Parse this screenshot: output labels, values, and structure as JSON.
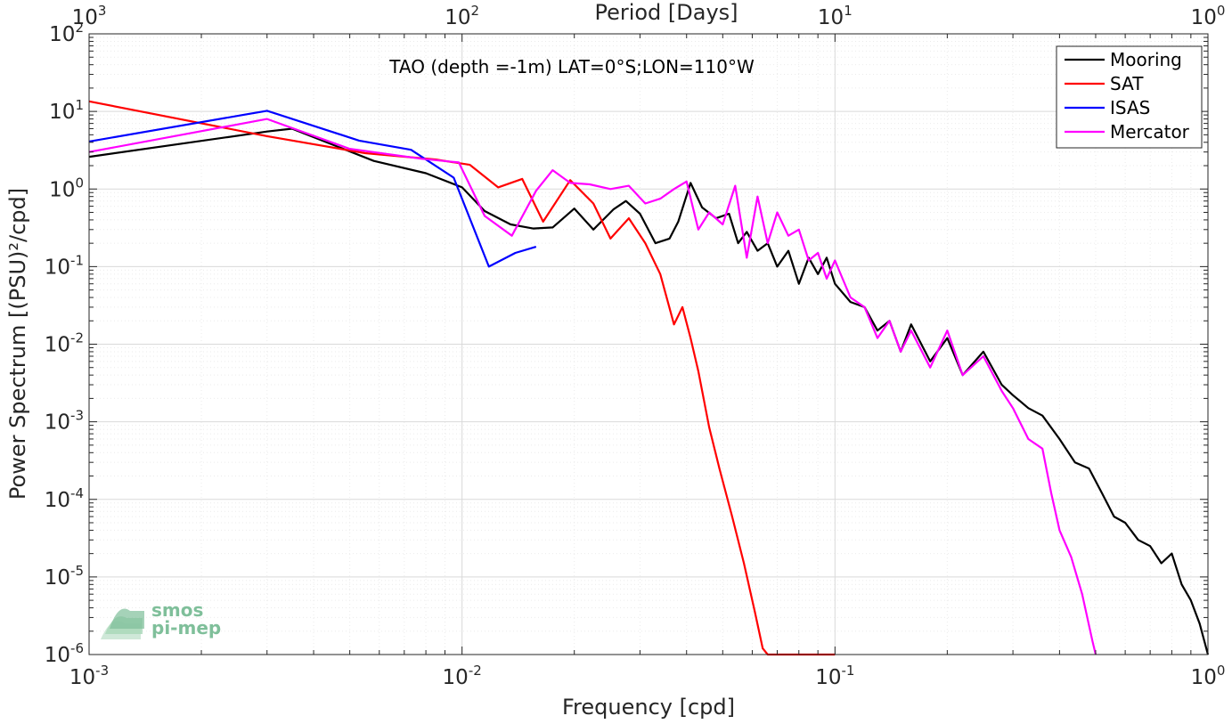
{
  "chart_data": {
    "type": "line",
    "title": "TAO (depth =-1m) LAT=0°S;LON=110°W",
    "xlabel": "Frequency [cpd]",
    "ylabel": "Power Spectrum [(PSU)²/cpd]",
    "top_axis_label": "Period [Days]",
    "xscale": "log",
    "yscale": "log",
    "xlim": [
      0.001,
      1
    ],
    "ylim": [
      1e-06,
      100
    ],
    "x_ticks": [
      {
        "base": "10",
        "exp": "-3"
      },
      {
        "base": "10",
        "exp": "-2"
      },
      {
        "base": "10",
        "exp": "-1"
      },
      {
        "base": "10",
        "exp": "0"
      }
    ],
    "top_ticks": [
      {
        "base": "10",
        "exp": "3"
      },
      {
        "base": "10",
        "exp": "2"
      },
      {
        "base": "10",
        "exp": "1"
      },
      {
        "base": "10",
        "exp": "0"
      }
    ],
    "y_ticks": [
      {
        "base": "10",
        "exp": "2"
      },
      {
        "base": "10",
        "exp": "1"
      },
      {
        "base": "10",
        "exp": "0"
      },
      {
        "base": "10",
        "exp": "-1"
      },
      {
        "base": "10",
        "exp": "-2"
      },
      {
        "base": "10",
        "exp": "-3"
      },
      {
        "base": "10",
        "exp": "-4"
      },
      {
        "base": "10",
        "exp": "-5"
      },
      {
        "base": "10",
        "exp": "-6"
      }
    ],
    "grid": true,
    "legend_position": "top-right",
    "series": [
      {
        "name": "Mooring",
        "color": "#000000",
        "x": [
          0.001,
          0.003,
          0.0035,
          0.0058,
          0.008,
          0.01,
          0.0115,
          0.0135,
          0.0155,
          0.0175,
          0.02,
          0.0225,
          0.0255,
          0.0275,
          0.03,
          0.033,
          0.036,
          0.038,
          0.041,
          0.044,
          0.048,
          0.052,
          0.055,
          0.058,
          0.062,
          0.066,
          0.07,
          0.075,
          0.08,
          0.085,
          0.09,
          0.095,
          0.1,
          0.11,
          0.12,
          0.13,
          0.14,
          0.15,
          0.16,
          0.18,
          0.2,
          0.22,
          0.25,
          0.28,
          0.3,
          0.33,
          0.36,
          0.4,
          0.44,
          0.48,
          0.52,
          0.56,
          0.6,
          0.65,
          0.7,
          0.75,
          0.8,
          0.85,
          0.9,
          0.95,
          1.0
        ],
        "values": [
          2.6,
          5.5,
          6.0,
          2.3,
          1.6,
          1.05,
          0.52,
          0.35,
          0.31,
          0.32,
          0.56,
          0.3,
          0.55,
          0.7,
          0.48,
          0.2,
          0.23,
          0.38,
          1.2,
          0.58,
          0.42,
          0.48,
          0.2,
          0.28,
          0.16,
          0.2,
          0.1,
          0.16,
          0.06,
          0.13,
          0.08,
          0.13,
          0.06,
          0.035,
          0.03,
          0.015,
          0.02,
          0.008,
          0.018,
          0.006,
          0.012,
          0.004,
          0.008,
          0.003,
          0.0022,
          0.0015,
          0.0012,
          0.0006,
          0.0003,
          0.00025,
          0.00012,
          6e-05,
          5e-05,
          3e-05,
          2.5e-05,
          1.5e-05,
          2e-05,
          8e-06,
          5e-06,
          2.5e-06,
          1e-06
        ]
      },
      {
        "name": "SAT",
        "color": "#ff0000",
        "x": [
          0.001,
          0.003,
          0.0055,
          0.0085,
          0.0105,
          0.0125,
          0.0145,
          0.0165,
          0.0195,
          0.0225,
          0.025,
          0.028,
          0.031,
          0.034,
          0.037,
          0.039,
          0.041,
          0.043,
          0.046,
          0.049,
          0.053,
          0.057,
          0.061,
          0.064,
          0.066,
          0.07,
          0.075,
          0.085,
          0.1
        ],
        "values": [
          13.5,
          4.8,
          2.9,
          2.4,
          2.05,
          1.05,
          1.35,
          0.38,
          1.3,
          0.65,
          0.23,
          0.42,
          0.2,
          0.08,
          0.018,
          0.03,
          0.012,
          0.0045,
          0.00085,
          0.00025,
          6e-05,
          1.5e-05,
          3.5e-06,
          1.2e-06,
          1e-06,
          1e-06,
          1e-06,
          1e-06,
          1e-06
        ]
      },
      {
        "name": "ISAS",
        "color": "#0000ff",
        "x": [
          0.001,
          0.003,
          0.0053,
          0.0073,
          0.0095,
          0.0118,
          0.0139,
          0.0158
        ],
        "values": [
          4.1,
          10.2,
          4.2,
          3.2,
          1.4,
          0.1,
          0.15,
          0.18
        ]
      },
      {
        "name": "Mercator",
        "color": "#ff00ff",
        "x": [
          0.001,
          0.003,
          0.005,
          0.0078,
          0.0098,
          0.0115,
          0.0136,
          0.0158,
          0.0175,
          0.0195,
          0.022,
          0.025,
          0.028,
          0.031,
          0.034,
          0.037,
          0.04,
          0.043,
          0.046,
          0.05,
          0.054,
          0.058,
          0.062,
          0.066,
          0.07,
          0.075,
          0.08,
          0.085,
          0.09,
          0.095,
          0.1,
          0.11,
          0.12,
          0.13,
          0.14,
          0.15,
          0.16,
          0.18,
          0.2,
          0.22,
          0.25,
          0.28,
          0.3,
          0.33,
          0.36,
          0.38,
          0.4,
          0.43,
          0.46,
          0.49,
          0.5
        ],
        "values": [
          3.0,
          8.0,
          3.3,
          2.45,
          2.2,
          0.45,
          0.25,
          0.95,
          1.75,
          1.2,
          1.15,
          1.0,
          1.1,
          0.65,
          0.75,
          1.0,
          1.25,
          0.3,
          0.5,
          0.35,
          1.1,
          0.13,
          0.8,
          0.2,
          0.5,
          0.25,
          0.3,
          0.12,
          0.15,
          0.07,
          0.12,
          0.04,
          0.03,
          0.012,
          0.02,
          0.008,
          0.015,
          0.005,
          0.015,
          0.004,
          0.007,
          0.0025,
          0.0015,
          0.0006,
          0.00045,
          0.00012,
          4e-05,
          1.8e-05,
          6e-06,
          1.5e-06,
          1e-06
        ]
      }
    ]
  },
  "logo": {
    "line1": "smos",
    "line2": "pi-mep"
  }
}
